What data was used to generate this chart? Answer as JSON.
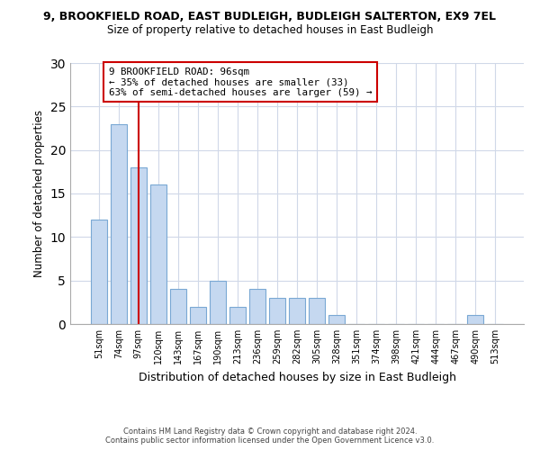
{
  "title1": "9, BROOKFIELD ROAD, EAST BUDLEIGH, BUDLEIGH SALTERTON, EX9 7EL",
  "title2": "Size of property relative to detached houses in East Budleigh",
  "xlabel": "Distribution of detached houses by size in East Budleigh",
  "ylabel": "Number of detached properties",
  "categories": [
    "51sqm",
    "74sqm",
    "97sqm",
    "120sqm",
    "143sqm",
    "167sqm",
    "190sqm",
    "213sqm",
    "236sqm",
    "259sqm",
    "282sqm",
    "305sqm",
    "328sqm",
    "351sqm",
    "374sqm",
    "398sqm",
    "421sqm",
    "444sqm",
    "467sqm",
    "490sqm",
    "513sqm"
  ],
  "values": [
    12,
    23,
    18,
    16,
    4,
    2,
    5,
    2,
    4,
    3,
    3,
    3,
    1,
    0,
    0,
    0,
    0,
    0,
    0,
    1,
    0
  ],
  "bar_color": "#c5d8f0",
  "bar_edge_color": "#7aa8d4",
  "vline_x": 2,
  "vline_color": "#cc0000",
  "annotation_line1": "9 BROOKFIELD ROAD: 96sqm",
  "annotation_line2": "← 35% of detached houses are smaller (33)",
  "annotation_line3": "63% of semi-detached houses are larger (59) →",
  "ylim": [
    0,
    30
  ],
  "yticks": [
    0,
    5,
    10,
    15,
    20,
    25,
    30
  ],
  "background_color": "#ffffff",
  "footer1": "Contains HM Land Registry data © Crown copyright and database right 2024.",
  "footer2": "Contains public sector information licensed under the Open Government Licence v3.0.",
  "grid_color": "#d0d8e8"
}
